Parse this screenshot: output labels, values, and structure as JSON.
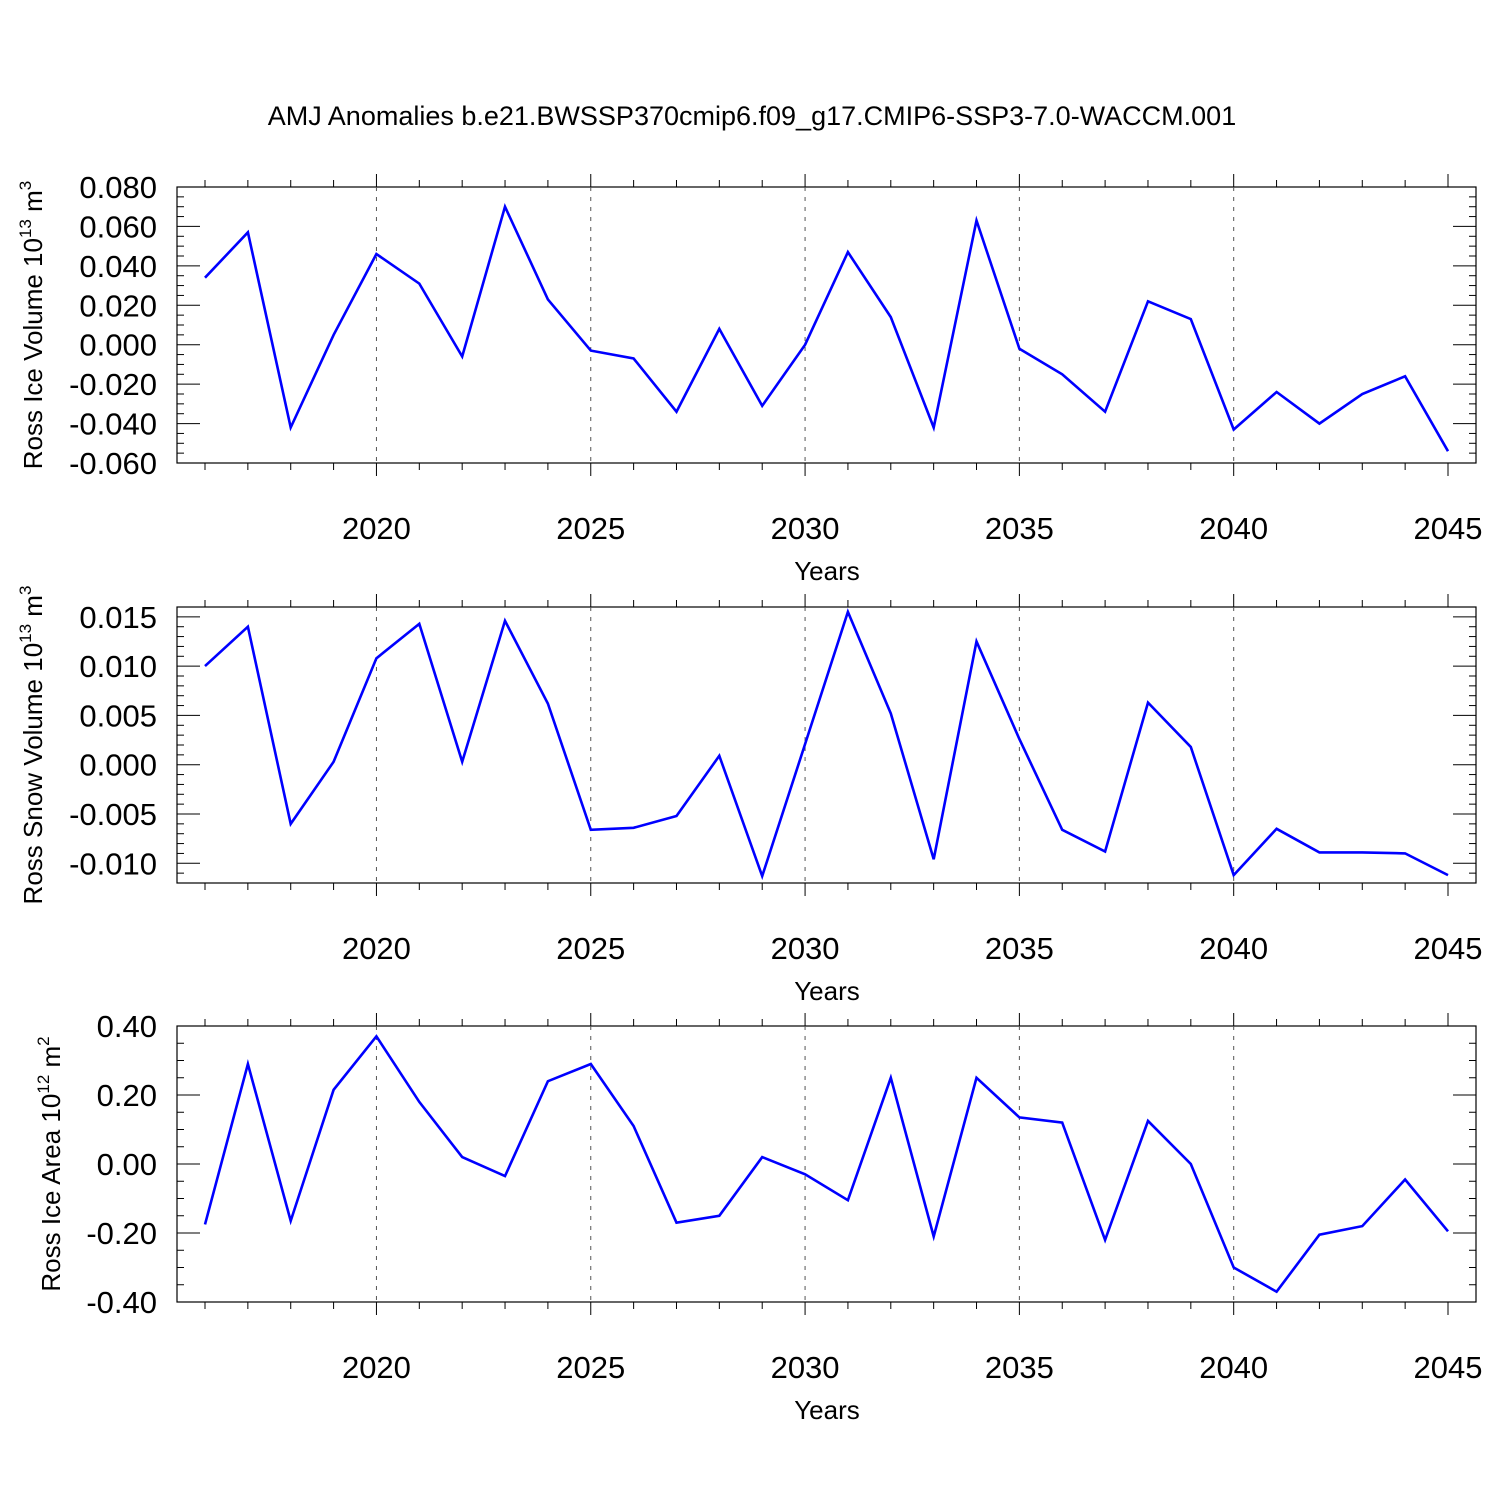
{
  "title": "AMJ Anomalies b.e21.BWSSP370cmip6.f09_g17.CMIP6-SSP3-7.0-WACCM.001",
  "chart_data": [
    {
      "type": "line",
      "xlabel": "Years",
      "ylabel": {
        "main": "Ross Ice Volume 10",
        "exponent": "13",
        "unit": " m",
        "unit_exponent": "3"
      },
      "xlim": [
        2016,
        2045
      ],
      "ylim": [
        -0.06,
        0.08
      ],
      "x_ticks": [
        2020,
        2025,
        2030,
        2035,
        2040,
        2045
      ],
      "y_ticks": [
        "0.080",
        "0.060",
        "0.040",
        "0.020",
        "0.000",
        "-0.020",
        "-0.040",
        "-0.060"
      ],
      "y_tick_values": [
        0.08,
        0.06,
        0.04,
        0.02,
        0.0,
        -0.02,
        -0.04,
        -0.06
      ],
      "y_minor_step": 0.005,
      "grid": "dashed vertical at major x ticks",
      "line_color": "#0000ff",
      "x": [
        2016,
        2017,
        2018,
        2019,
        2020,
        2021,
        2022,
        2023,
        2024,
        2025,
        2026,
        2027,
        2028,
        2029,
        2030,
        2031,
        2032,
        2033,
        2034,
        2035,
        2036,
        2037,
        2038,
        2039,
        2040,
        2041,
        2042,
        2043,
        2044,
        2045
      ],
      "values": [
        0.034,
        0.057,
        -0.042,
        0.005,
        0.046,
        0.031,
        -0.006,
        0.07,
        0.023,
        -0.003,
        -0.007,
        -0.034,
        0.008,
        -0.031,
        0.0,
        0.047,
        0.014,
        -0.042,
        0.063,
        -0.002,
        -0.015,
        -0.034,
        0.022,
        0.013,
        -0.043,
        -0.024,
        -0.04,
        -0.025,
        -0.016,
        -0.054
      ]
    },
    {
      "type": "line",
      "xlabel": "Years",
      "ylabel": {
        "main": "Ross Snow Volume 10",
        "exponent": "13",
        "unit": " m",
        "unit_exponent": "3"
      },
      "xlim": [
        2016,
        2045
      ],
      "ylim": [
        -0.012,
        0.016
      ],
      "x_ticks": [
        2020,
        2025,
        2030,
        2035,
        2040,
        2045
      ],
      "y_ticks": [
        "0.015",
        "0.010",
        "0.005",
        "0.000",
        "-0.005",
        "-0.010"
      ],
      "y_tick_values": [
        0.015,
        0.01,
        0.005,
        0.0,
        -0.005,
        -0.01
      ],
      "y_minor_step": 0.001,
      "grid": "dashed vertical at major x ticks",
      "line_color": "#0000ff",
      "x": [
        2016,
        2017,
        2018,
        2019,
        2020,
        2021,
        2022,
        2023,
        2024,
        2025,
        2026,
        2027,
        2028,
        2029,
        2030,
        2031,
        2032,
        2033,
        2034,
        2035,
        2036,
        2037,
        2038,
        2039,
        2040,
        2041,
        2042,
        2043,
        2044,
        2045
      ],
      "values": [
        0.01,
        0.014,
        -0.006,
        0.0003,
        0.0108,
        0.0143,
        0.0003,
        0.0146,
        0.0062,
        -0.0066,
        -0.0064,
        -0.0052,
        0.0009,
        -0.0113,
        0.0021,
        0.0155,
        0.0052,
        -0.0096,
        0.0125,
        0.0026,
        -0.0066,
        -0.0088,
        0.0063,
        0.0018,
        -0.0112,
        -0.0065,
        -0.0089,
        -0.0089,
        -0.009,
        -0.0112
      ]
    },
    {
      "type": "line",
      "xlabel": "Years",
      "ylabel": {
        "main": "Ross Ice Area 10",
        "exponent": "12",
        "unit": " m",
        "unit_exponent": "2"
      },
      "xlim": [
        2016,
        2045
      ],
      "ylim": [
        -0.4,
        0.4
      ],
      "x_ticks": [
        2020,
        2025,
        2030,
        2035,
        2040,
        2045
      ],
      "y_ticks": [
        "0.40",
        "0.20",
        "0.00",
        "-0.20",
        "-0.40"
      ],
      "y_tick_values": [
        0.4,
        0.2,
        0.0,
        -0.2,
        -0.4
      ],
      "y_minor_step": 0.05,
      "grid": "dashed vertical at major x ticks",
      "line_color": "#0000ff",
      "x": [
        2016,
        2017,
        2018,
        2019,
        2020,
        2021,
        2022,
        2023,
        2024,
        2025,
        2026,
        2027,
        2028,
        2029,
        2030,
        2031,
        2032,
        2033,
        2034,
        2035,
        2036,
        2037,
        2038,
        2039,
        2040,
        2041,
        2042,
        2043,
        2044,
        2045
      ],
      "values": [
        -0.175,
        0.29,
        -0.165,
        0.215,
        0.37,
        0.18,
        0.02,
        -0.035,
        0.24,
        0.29,
        0.11,
        -0.17,
        -0.15,
        0.02,
        -0.03,
        -0.105,
        0.25,
        -0.21,
        0.25,
        0.135,
        0.12,
        -0.22,
        0.125,
        0.0,
        -0.3,
        -0.37,
        -0.205,
        -0.18,
        -0.045,
        -0.195
      ]
    }
  ]
}
